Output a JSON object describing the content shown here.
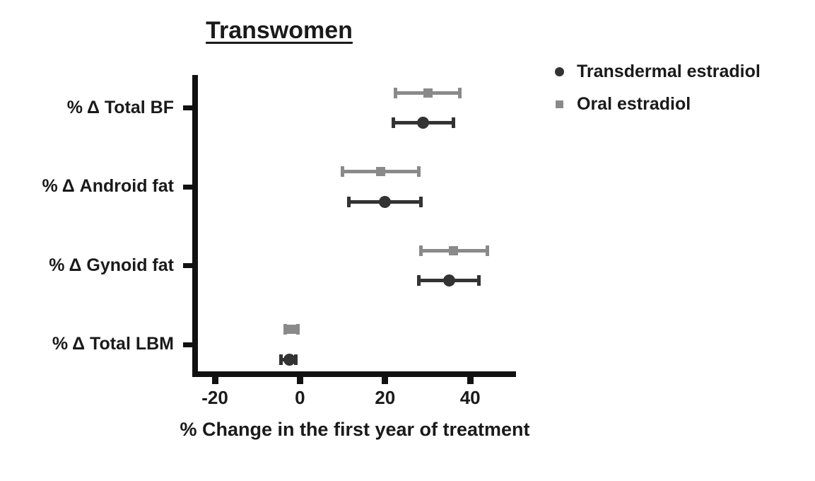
{
  "figure": {
    "title": "Transwomen",
    "xlabel": "% Change in the first year of treatment"
  },
  "legend": {
    "items": [
      {
        "label": "Transdermal estradiol",
        "marker": "circle-icon",
        "color": "#333333"
      },
      {
        "label": "Oral estradiol",
        "marker": "square-icon",
        "color": "#8a8a8a"
      }
    ]
  },
  "chart_data": {
    "type": "scatter",
    "subtype": "horizontal-error-bars-forest-plot",
    "title": "Transwomen",
    "xlabel": "% Change in the first year of treatment",
    "ylabel": "",
    "categories": [
      "% Δ Total BF",
      "% Δ Android fat",
      "% Δ Gynoid fat",
      "% Δ Total LBM"
    ],
    "x_ticks": [
      -20,
      0,
      20,
      40
    ],
    "xlim": [
      -25,
      51
    ],
    "grid": false,
    "legend_position": "top-right",
    "series": [
      {
        "name": "Transdermal estradiol",
        "marker": "circle",
        "color": "#333333",
        "values": [
          29,
          20,
          35,
          -2.5
        ],
        "ci_low": [
          22,
          11.5,
          28,
          -4.5
        ],
        "ci_high": [
          36,
          28.5,
          42,
          -1
        ]
      },
      {
        "name": "Oral estradiol",
        "marker": "square",
        "color": "#8a8a8a",
        "values": [
          30,
          19,
          36,
          -2
        ],
        "ci_low": [
          22.5,
          10,
          28.5,
          -3.5
        ],
        "ci_high": [
          37.5,
          28,
          44,
          -0.5
        ]
      }
    ]
  }
}
